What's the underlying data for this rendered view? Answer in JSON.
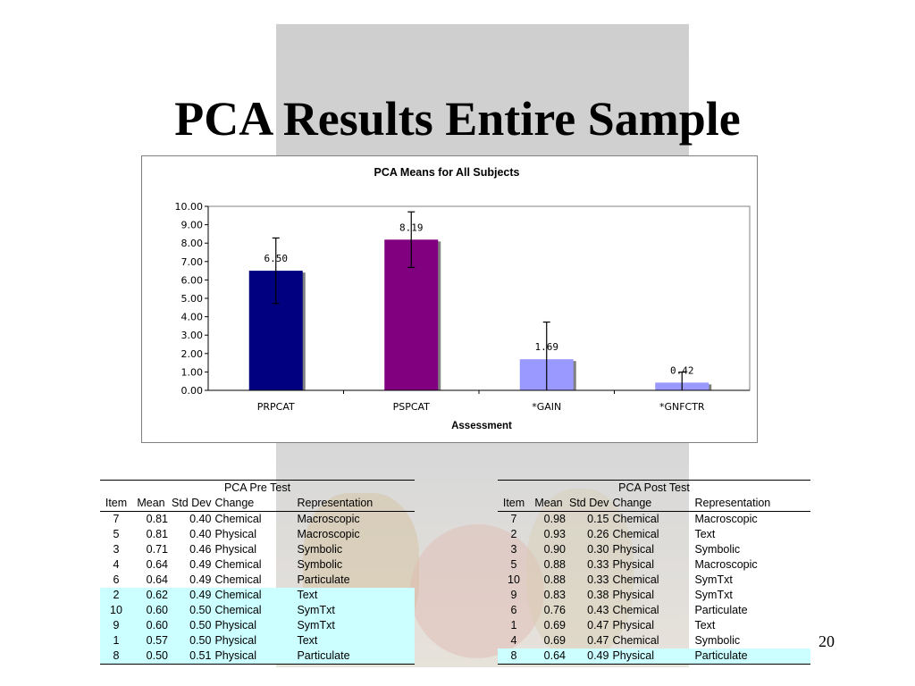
{
  "slide": {
    "title": "PCA Results Entire Sample",
    "page_number": "20"
  },
  "chart_data": {
    "type": "bar",
    "title": "PCA Means for All Subjects",
    "xlabel": "Assessment",
    "ylabel": "",
    "ylim": [
      0,
      10
    ],
    "yticks": [
      "0.00",
      "1.00",
      "2.00",
      "3.00",
      "4.00",
      "5.00",
      "6.00",
      "7.00",
      "8.00",
      "9.00",
      "10.00"
    ],
    "categories": [
      "PRPCAT",
      "PSPCAT",
      "*GAIN",
      "*GNFCTR"
    ],
    "values": [
      6.5,
      8.19,
      1.69,
      0.42
    ],
    "data_labels": [
      "6.50",
      "8.19",
      "1.69",
      "0.42"
    ],
    "error_bars": [
      1.78,
      1.51,
      2.02,
      0.57
    ],
    "colors": [
      "#000080",
      "#800080",
      "#9999ff",
      "#9999ff"
    ],
    "grid": false,
    "legend": "none"
  },
  "pre_table": {
    "group_title": "PCA Pre Test",
    "columns": [
      "Item",
      "Mean",
      "Std Dev",
      "Change",
      "Representation"
    ],
    "rows": [
      {
        "item": "7",
        "mean": "0.81",
        "sd": "0.40",
        "change": "Chemical",
        "rep": "Macroscopic",
        "highlight": false
      },
      {
        "item": "5",
        "mean": "0.81",
        "sd": "0.40",
        "change": "Physical",
        "rep": "Macroscopic",
        "highlight": false
      },
      {
        "item": "3",
        "mean": "0.71",
        "sd": "0.46",
        "change": "Physical",
        "rep": "Symbolic",
        "highlight": false
      },
      {
        "item": "4",
        "mean": "0.64",
        "sd": "0.49",
        "change": "Chemical",
        "rep": "Symbolic",
        "highlight": false
      },
      {
        "item": "6",
        "mean": "0.64",
        "sd": "0.49",
        "change": "Chemical",
        "rep": "Particulate",
        "highlight": false
      },
      {
        "item": "2",
        "mean": "0.62",
        "sd": "0.49",
        "change": "Chemical",
        "rep": "Text",
        "highlight": true
      },
      {
        "item": "10",
        "mean": "0.60",
        "sd": "0.50",
        "change": "Chemical",
        "rep": "SymTxt",
        "highlight": true
      },
      {
        "item": "9",
        "mean": "0.60",
        "sd": "0.50",
        "change": "Physical",
        "rep": "SymTxt",
        "highlight": true
      },
      {
        "item": "1",
        "mean": "0.57",
        "sd": "0.50",
        "change": "Physical",
        "rep": "Text",
        "highlight": true
      },
      {
        "item": "8",
        "mean": "0.50",
        "sd": "0.51",
        "change": "Physical",
        "rep": "Particulate",
        "highlight": true
      }
    ]
  },
  "post_table": {
    "group_title": "PCA Post Test",
    "columns": [
      "Item",
      "Mean",
      "Std Dev",
      "Change",
      "Representation"
    ],
    "rows": [
      {
        "item": "7",
        "mean": "0.98",
        "sd": "0.15",
        "change": "Chemical",
        "rep": "Macroscopic",
        "highlight": false
      },
      {
        "item": "2",
        "mean": "0.93",
        "sd": "0.26",
        "change": "Chemical",
        "rep": "Text",
        "highlight": false
      },
      {
        "item": "3",
        "mean": "0.90",
        "sd": "0.30",
        "change": "Physical",
        "rep": "Symbolic",
        "highlight": false
      },
      {
        "item": "5",
        "mean": "0.88",
        "sd": "0.33",
        "change": "Physical",
        "rep": "Macroscopic",
        "highlight": false
      },
      {
        "item": "10",
        "mean": "0.88",
        "sd": "0.33",
        "change": "Chemical",
        "rep": "SymTxt",
        "highlight": false
      },
      {
        "item": "9",
        "mean": "0.83",
        "sd": "0.38",
        "change": "Physical",
        "rep": "SymTxt",
        "highlight": false
      },
      {
        "item": "6",
        "mean": "0.76",
        "sd": "0.43",
        "change": "Chemical",
        "rep": "Particulate",
        "highlight": false
      },
      {
        "item": "1",
        "mean": "0.69",
        "sd": "0.47",
        "change": "Physical",
        "rep": "Text",
        "highlight": false
      },
      {
        "item": "4",
        "mean": "0.69",
        "sd": "0.47",
        "change": "Chemical",
        "rep": "Symbolic",
        "highlight": false
      },
      {
        "item": "8",
        "mean": "0.64",
        "sd": "0.49",
        "change": "Physical",
        "rep": "Particulate",
        "highlight": true
      }
    ]
  },
  "colors": {
    "highlight": "#ccffff",
    "gray_backdrop": "#d3d3d3"
  }
}
